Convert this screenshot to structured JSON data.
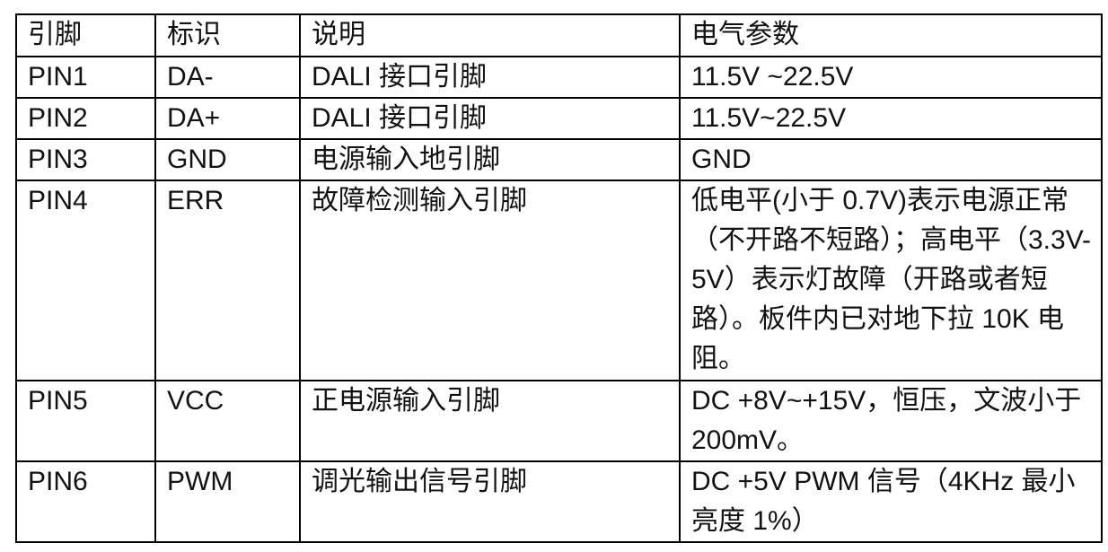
{
  "page": {
    "background": "#ffffff",
    "border_color": "#000000",
    "text_color": "#121212"
  },
  "table": {
    "headers": [
      "引脚",
      "标识",
      "说明",
      "电气参数"
    ],
    "rows": [
      {
        "pin": "PIN1",
        "label": "DA-",
        "desc": "DALI 接口引脚",
        "params": "11.5V ~22.5V"
      },
      {
        "pin": "PIN2",
        "label": "DA+",
        "desc": "DALI 接口引脚",
        "params": "11.5V~22.5V"
      },
      {
        "pin": "PIN3",
        "label": "GND",
        "desc": "电源输入地引脚",
        "params": "GND"
      },
      {
        "pin": "PIN4",
        "label": "ERR",
        "desc": "故障检测输入引脚",
        "params": "低电平(小于 0.7V)表示电源正常（不开路不短路）；高电平（3.3V-5V）表示灯故障（开路或者短路）。板件内已对地下拉 10K 电阻。"
      },
      {
        "pin": "PIN5",
        "label": "VCC",
        "desc": "正电源输入引脚",
        "params": "DC +8V~+15V，恒压，文波小于 200mV。"
      },
      {
        "pin": "PIN6",
        "label": "PWM",
        "desc": "调光输出信号引脚",
        "params": "DC +5V PWM 信号（4KHz 最小亮度 1%）"
      }
    ]
  }
}
